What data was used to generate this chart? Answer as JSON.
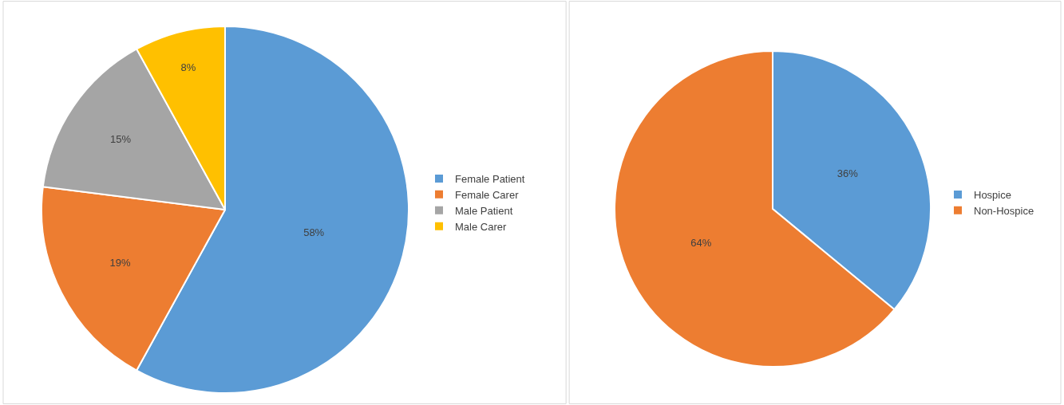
{
  "chart_data": [
    {
      "type": "pie",
      "categories": [
        "Female Patient",
        "Female Carer",
        "Male Patient",
        "Male Carer"
      ],
      "values": [
        58,
        19,
        15,
        8
      ],
      "value_labels": [
        "58%",
        "19%",
        "15%",
        "8%"
      ],
      "colors": [
        "#5b9bd5",
        "#ed7d31",
        "#a5a5a5",
        "#ffc000"
      ],
      "legend": "right"
    },
    {
      "type": "pie",
      "categories": [
        "Hospice",
        "Non-Hospice"
      ],
      "values": [
        36,
        64
      ],
      "value_labels": [
        "36%",
        "64%"
      ],
      "colors": [
        "#5b9bd5",
        "#ed7d31"
      ],
      "legend": "right"
    }
  ]
}
